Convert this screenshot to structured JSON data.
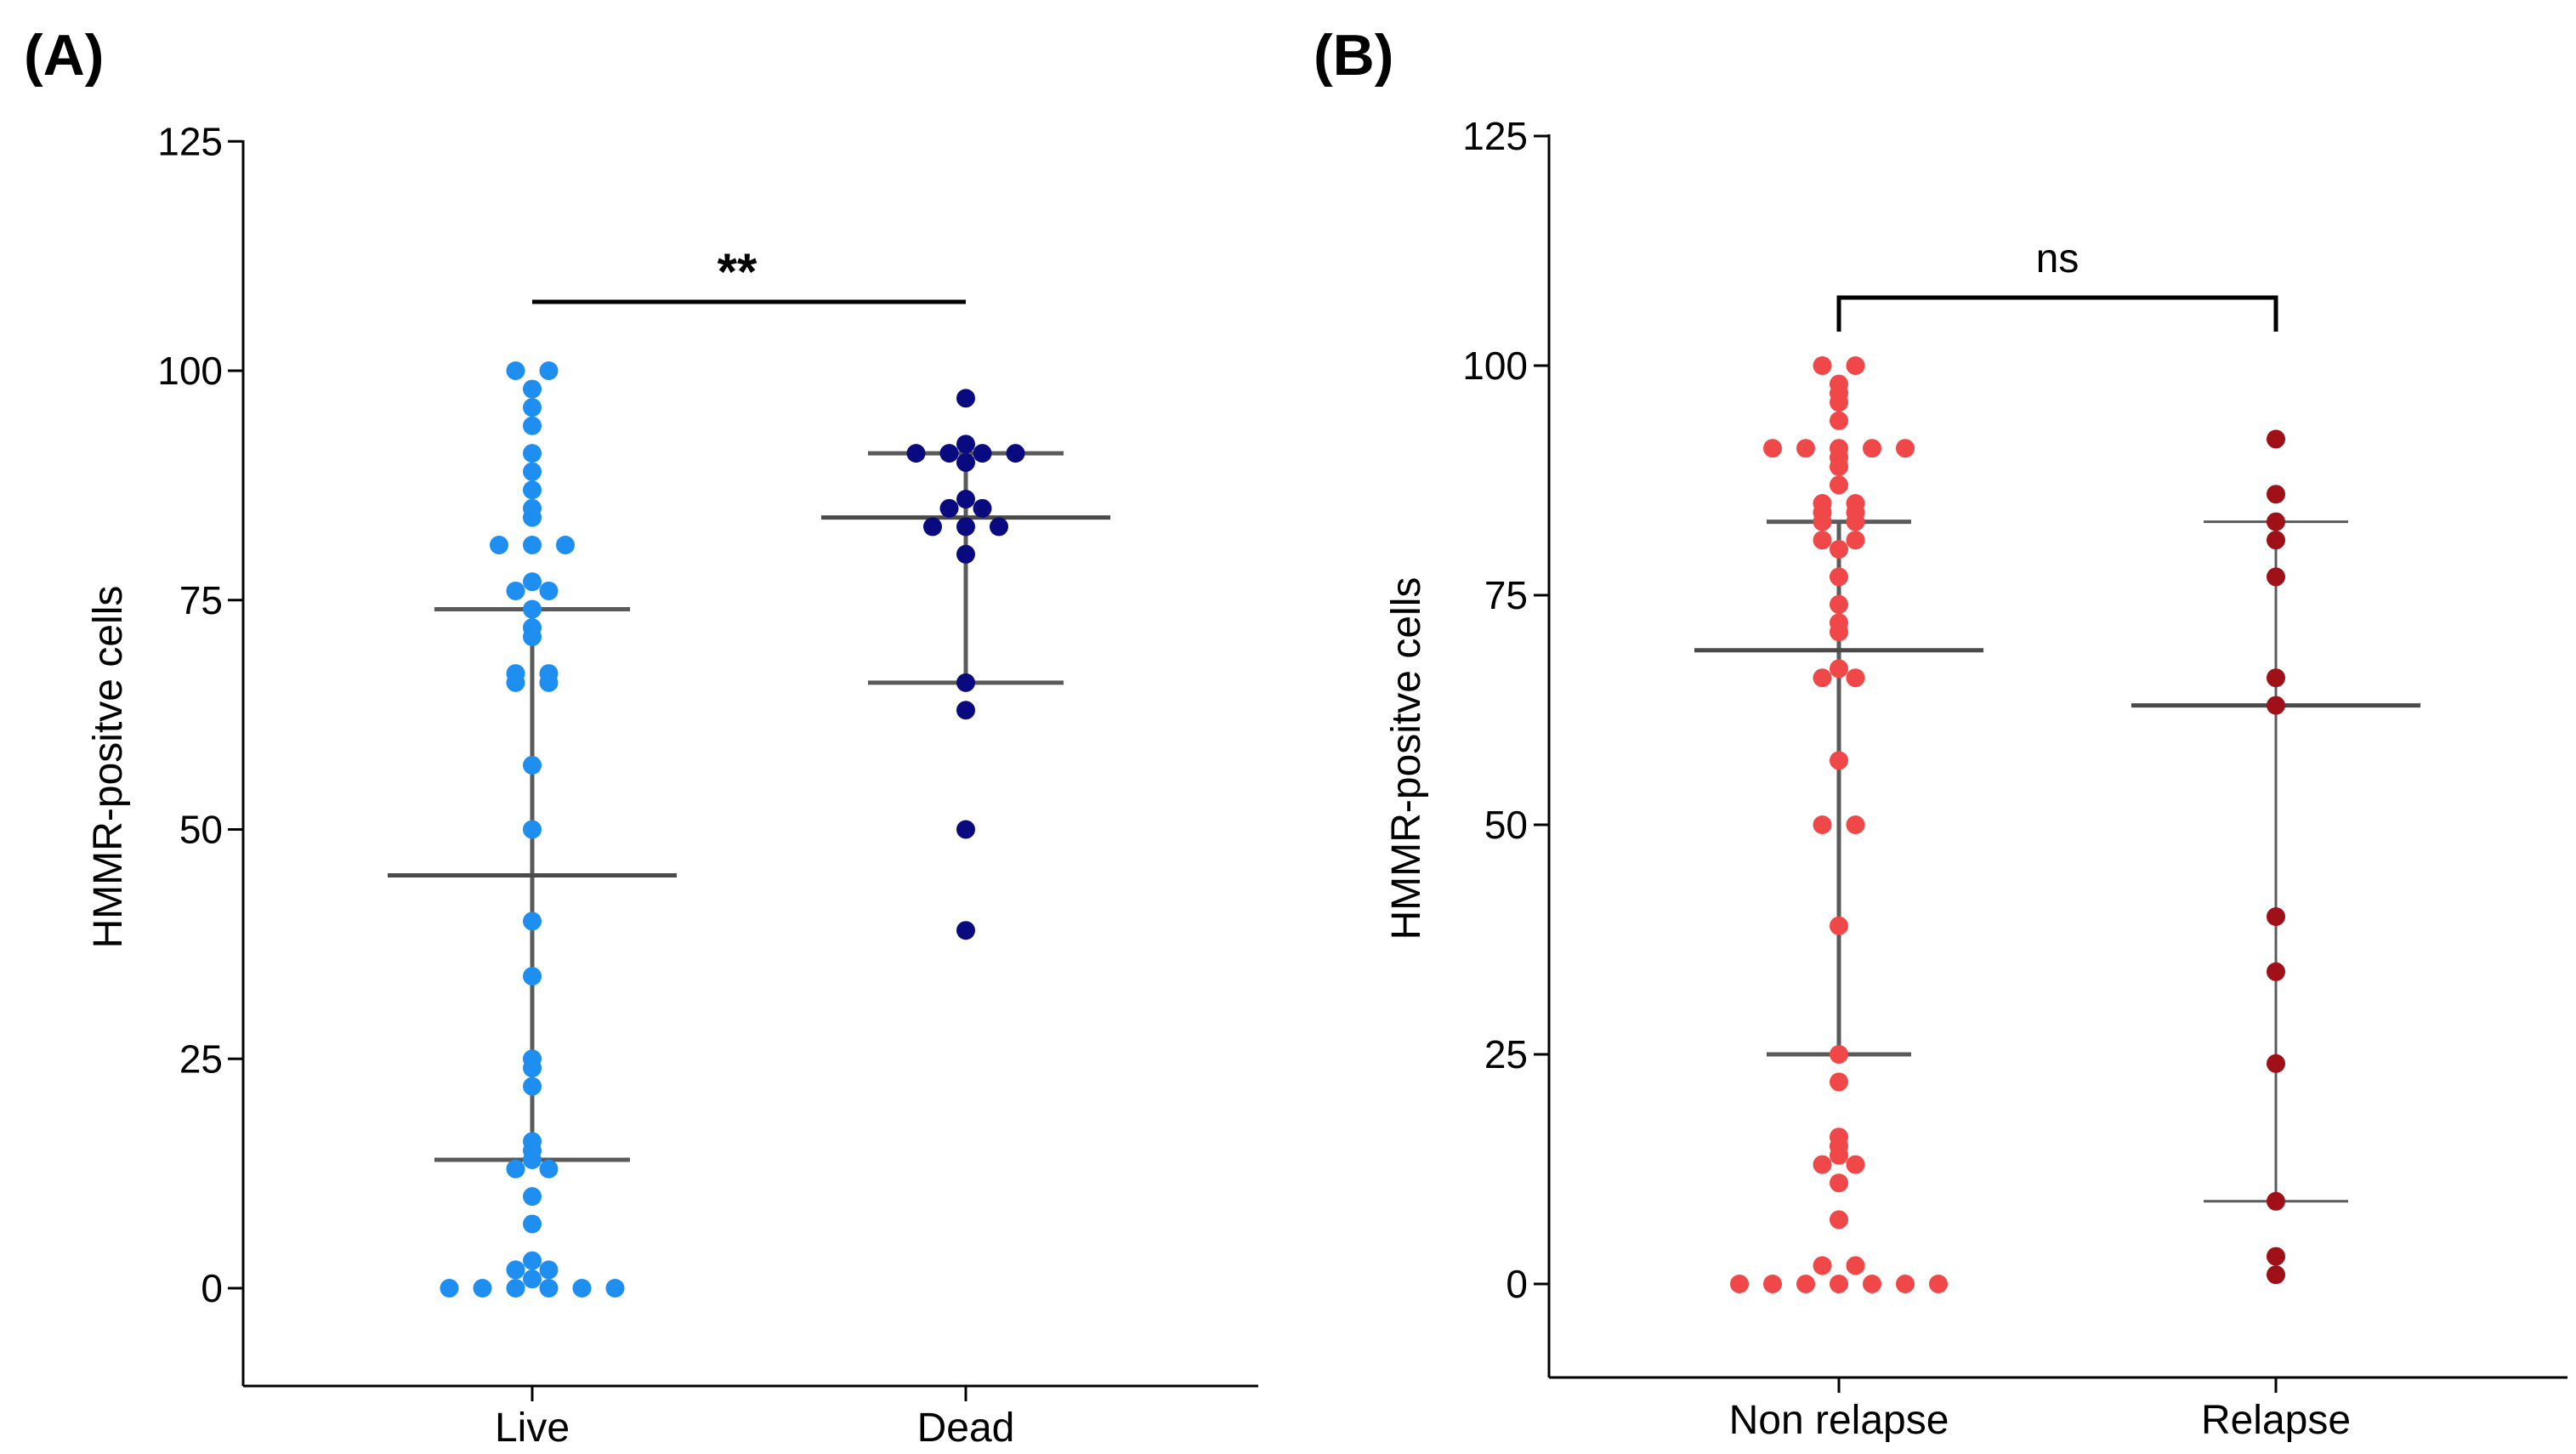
{
  "chart_data": [
    {
      "panel": "(A)",
      "type": "scatter",
      "subtype": "dot-plot-with-median-iqr",
      "title": "",
      "xlabel": "",
      "ylabel": "HMMR-positve cells",
      "ylim": [
        -10,
        125
      ],
      "yticks": [
        "0",
        "25",
        "50",
        "75",
        "100",
        "125"
      ],
      "categories": [
        "Live",
        "Dead"
      ],
      "significance": {
        "label": "**",
        "style": "line"
      },
      "series": [
        {
          "name": "Live",
          "color": "#1e8ff0",
          "values": [
            100,
            100,
            98,
            96,
            94,
            91,
            89,
            87,
            85,
            84,
            81,
            81,
            81,
            77,
            76,
            76,
            74,
            72,
            71,
            67,
            67,
            66,
            66,
            57,
            50,
            40,
            34,
            25,
            24,
            22,
            16,
            15,
            14,
            13,
            13,
            10,
            7,
            3,
            2,
            2,
            1,
            0,
            0,
            0,
            0,
            0,
            0
          ],
          "median": 45,
          "q1": 14,
          "q3": 74
        },
        {
          "name": "Dead",
          "color": "#0a0a80",
          "values": [
            97,
            92,
            91,
            91,
            91,
            91,
            90,
            86,
            85,
            85,
            83,
            83,
            83,
            80,
            66,
            63,
            50,
            39
          ],
          "median": 84,
          "q1": 66,
          "q3": 91
        }
      ]
    },
    {
      "panel": "(B)",
      "type": "scatter",
      "subtype": "dot-plot-with-median-iqr",
      "title": "",
      "xlabel": "",
      "ylabel": "HMMR-positve cells",
      "ylim": [
        -10,
        125
      ],
      "yticks": [
        "0",
        "25",
        "50",
        "75",
        "100",
        "125"
      ],
      "categories": [
        "Non relapse",
        "Relapse"
      ],
      "significance": {
        "label": "ns",
        "style": "bracket"
      },
      "series": [
        {
          "name": "Non relapse",
          "color": "#f04848",
          "values": [
            100,
            100,
            98,
            97,
            96,
            94,
            91,
            91,
            91,
            91,
            91,
            90,
            89,
            87,
            85,
            85,
            84,
            84,
            83,
            83,
            81,
            81,
            80,
            77,
            74,
            72,
            71,
            67,
            66,
            66,
            57,
            50,
            50,
            39,
            25,
            22,
            16,
            15,
            14,
            13,
            13,
            11,
            7,
            2,
            2,
            0,
            0,
            0,
            0,
            0,
            0,
            0
          ],
          "median": 69,
          "q1": 25,
          "q3": 83
        },
        {
          "name": "Relapse",
          "color": "#a01018",
          "values": [
            92,
            86,
            83,
            81,
            77,
            66,
            63,
            40,
            34,
            24,
            9,
            3,
            1
          ],
          "median": 63,
          "q1": 9,
          "q3": 83
        }
      ]
    }
  ]
}
